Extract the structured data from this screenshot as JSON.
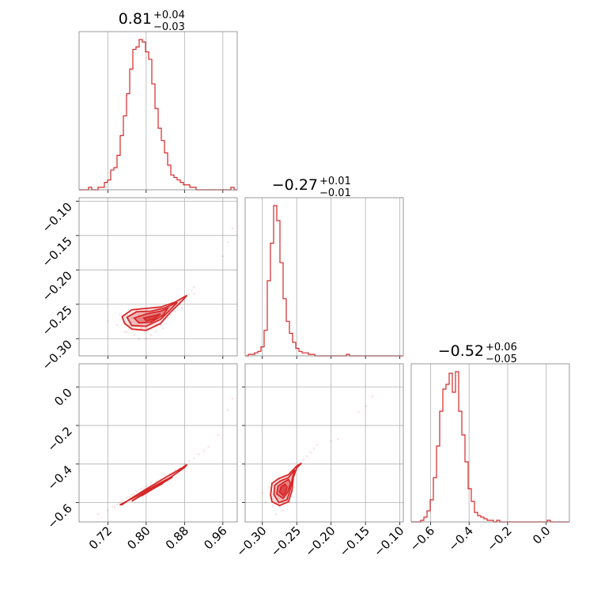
{
  "chart_data": {
    "type": "corner",
    "color": "#d62728",
    "grid": true,
    "parameters": [
      {
        "median": 0.81,
        "plus": 0.04,
        "minus": 0.03,
        "title": "0.81",
        "sup": "+0.04",
        "sub": "−0.03"
      },
      {
        "median": -0.27,
        "plus": 0.01,
        "minus": 0.01,
        "title": "−0.27",
        "sup": "+0.01",
        "sub": "−0.01"
      },
      {
        "median": -0.52,
        "plus": 0.06,
        "minus": 0.05,
        "title": "−0.52",
        "sup": "+0.06",
        "sub": "−0.05"
      }
    ],
    "axes": [
      {
        "range": [
          0.66,
          0.99
        ],
        "ticks": [
          0.72,
          0.8,
          0.88,
          0.96
        ],
        "tick_labels": [
          "0.72",
          "0.80",
          "0.88",
          "0.96"
        ]
      },
      {
        "range": [
          -0.325,
          -0.095
        ],
        "ticks": [
          -0.3,
          -0.25,
          -0.2,
          -0.15,
          -0.1
        ],
        "tick_labels": [
          "−0.30",
          "−0.25",
          "−0.20",
          "−0.15",
          "−0.10"
        ]
      },
      {
        "range": [
          -0.7,
          0.12
        ],
        "ticks": [
          -0.6,
          -0.4,
          -0.2,
          0.0
        ],
        "tick_labels": [
          "−0.6",
          "−0.4",
          "−0.2",
          "0.0"
        ]
      }
    ],
    "histograms": [
      {
        "edges_start": 0.66,
        "bin_width": 0.0066,
        "counts": [
          0,
          0,
          0,
          1,
          0,
          0,
          1,
          1,
          3,
          4,
          8,
          9,
          14,
          22,
          30,
          39,
          49,
          57,
          58,
          61,
          60,
          56,
          53,
          43,
          33,
          25,
          20,
          15,
          10,
          6,
          5,
          4,
          3,
          2,
          2,
          1,
          1,
          0,
          0,
          0,
          0,
          0,
          0,
          0,
          0,
          0,
          0,
          0,
          1,
          0
        ]
      },
      {
        "edges_start": -0.325,
        "bin_width": 0.0046,
        "counts": [
          0,
          1,
          1,
          2,
          3,
          6,
          17,
          50,
          75,
          100,
          90,
          62,
          38,
          23,
          15,
          9,
          5,
          3,
          2,
          2,
          1,
          1,
          0,
          0,
          0,
          0,
          0,
          0,
          0,
          0,
          0,
          0,
          1,
          0,
          0,
          0,
          0,
          0,
          0,
          0,
          0,
          0,
          0,
          0,
          0,
          0,
          0,
          0,
          0,
          0
        ]
      },
      {
        "edges_start": -0.7,
        "bin_width": 0.0164,
        "counts": [
          0,
          0,
          0,
          1,
          3,
          7,
          14,
          28,
          48,
          70,
          84,
          87,
          94,
          82,
          95,
          70,
          55,
          38,
          21,
          13,
          6,
          4,
          3,
          2,
          1,
          1,
          0,
          1,
          0,
          0,
          0,
          0,
          0,
          0,
          0,
          0,
          0,
          0,
          0,
          0,
          0,
          0,
          0,
          1,
          0,
          0,
          0,
          0,
          0,
          0
        ]
      }
    ],
    "pairs": [
      {
        "x_param": 0,
        "y_param": 1,
        "scatter_x": [
          0.72,
          0.74,
          0.745,
          0.755,
          0.77,
          0.775,
          0.78,
          0.79,
          0.79,
          0.8,
          0.805,
          0.81,
          0.815,
          0.82,
          0.825,
          0.83,
          0.835,
          0.84,
          0.85,
          0.855,
          0.86,
          0.87,
          0.875,
          0.88,
          0.89,
          0.895,
          0.9,
          0.75,
          0.765,
          0.785,
          0.795,
          0.8,
          0.81,
          0.82,
          0.83,
          0.845,
          0.86,
          0.87,
          0.76,
          0.78,
          0.8,
          0.82,
          0.84,
          0.86,
          0.88,
          0.9,
          0.96,
          0.97,
          0.98,
          0.785,
          0.81,
          0.835
        ],
        "scatter_y": [
          -0.275,
          -0.28,
          -0.265,
          -0.29,
          -0.27,
          -0.295,
          -0.26,
          -0.285,
          -0.255,
          -0.3,
          -0.265,
          -0.275,
          -0.26,
          -0.29,
          -0.265,
          -0.28,
          -0.27,
          -0.255,
          -0.265,
          -0.25,
          -0.26,
          -0.245,
          -0.255,
          -0.24,
          -0.235,
          -0.23,
          -0.225,
          -0.27,
          -0.28,
          -0.265,
          -0.27,
          -0.285,
          -0.275,
          -0.27,
          -0.26,
          -0.27,
          -0.255,
          -0.25,
          -0.29,
          -0.275,
          -0.26,
          -0.28,
          -0.265,
          -0.25,
          -0.245,
          -0.235,
          -0.18,
          -0.16,
          -0.14,
          -0.3,
          -0.295,
          -0.285
        ],
        "contours": [
          [
            [
              0.75,
              -0.268
            ],
            [
              0.77,
              -0.258
            ],
            [
              0.8,
              -0.256
            ],
            [
              0.83,
              -0.254
            ],
            [
              0.86,
              -0.247
            ],
            [
              0.885,
              -0.237
            ],
            [
              0.875,
              -0.245
            ],
            [
              0.85,
              -0.262
            ],
            [
              0.83,
              -0.278
            ],
            [
              0.8,
              -0.288
            ],
            [
              0.77,
              -0.286
            ],
            [
              0.755,
              -0.278
            ]
          ],
          [
            [
              0.76,
              -0.269
            ],
            [
              0.78,
              -0.261
            ],
            [
              0.81,
              -0.26
            ],
            [
              0.84,
              -0.255
            ],
            [
              0.865,
              -0.247
            ],
            [
              0.85,
              -0.258
            ],
            [
              0.83,
              -0.272
            ],
            [
              0.8,
              -0.282
            ],
            [
              0.77,
              -0.281
            ]
          ],
          [
            [
              0.775,
              -0.27
            ],
            [
              0.8,
              -0.264
            ],
            [
              0.83,
              -0.26
            ],
            [
              0.845,
              -0.256
            ],
            [
              0.835,
              -0.266
            ],
            [
              0.81,
              -0.276
            ],
            [
              0.785,
              -0.277
            ]
          ],
          [
            [
              0.795,
              -0.27
            ],
            [
              0.82,
              -0.266
            ],
            [
              0.83,
              -0.264
            ],
            [
              0.815,
              -0.272
            ],
            [
              0.8,
              -0.274
            ]
          ]
        ]
      },
      {
        "x_param": 0,
        "y_param": 2,
        "scatter_x": [
          0.72,
          0.73,
          0.74,
          0.745,
          0.75,
          0.76,
          0.77,
          0.775,
          0.78,
          0.79,
          0.8,
          0.81,
          0.82,
          0.83,
          0.84,
          0.85,
          0.86,
          0.87,
          0.88,
          0.89,
          0.9,
          0.91,
          0.92,
          0.93,
          0.95,
          0.97,
          0.98,
          0.7,
          0.735,
          0.765,
          0.795,
          0.825,
          0.855,
          0.885
        ],
        "scatter_y": [
          -0.64,
          -0.62,
          -0.61,
          -0.6,
          -0.59,
          -0.575,
          -0.56,
          -0.555,
          -0.54,
          -0.53,
          -0.515,
          -0.5,
          -0.49,
          -0.475,
          -0.46,
          -0.45,
          -0.43,
          -0.42,
          -0.4,
          -0.385,
          -0.37,
          -0.35,
          -0.33,
          -0.31,
          -0.25,
          -0.12,
          -0.06,
          -0.66,
          -0.625,
          -0.57,
          -0.525,
          -0.485,
          -0.445,
          -0.41
        ],
        "contours": [
          [
            [
              0.745,
              -0.612
            ],
            [
              0.78,
              -0.566
            ],
            [
              0.82,
              -0.51
            ],
            [
              0.85,
              -0.47
            ],
            [
              0.88,
              -0.418
            ],
            [
              0.885,
              -0.402
            ],
            [
              0.875,
              -0.42
            ],
            [
              0.84,
              -0.47
            ],
            [
              0.8,
              -0.53
            ],
            [
              0.765,
              -0.584
            ],
            [
              0.75,
              -0.61
            ]
          ],
          [
            [
              0.77,
              -0.592
            ],
            [
              0.8,
              -0.548
            ],
            [
              0.83,
              -0.505
            ],
            [
              0.855,
              -0.468
            ],
            [
              0.85,
              -0.472
            ],
            [
              0.82,
              -0.516
            ],
            [
              0.79,
              -0.56
            ],
            [
              0.772,
              -0.588
            ]
          ],
          [
            [
              0.79,
              -0.565
            ],
            [
              0.815,
              -0.528
            ],
            [
              0.835,
              -0.5
            ],
            [
              0.828,
              -0.506
            ],
            [
              0.805,
              -0.538
            ],
            [
              0.792,
              -0.56
            ]
          ],
          [
            [
              0.8,
              -0.545
            ],
            [
              0.822,
              -0.515
            ],
            [
              0.815,
              -0.522
            ],
            [
              0.803,
              -0.54
            ]
          ]
        ]
      },
      {
        "x_param": 1,
        "y_param": 2,
        "scatter_x": [
          -0.3,
          -0.295,
          -0.29,
          -0.285,
          -0.28,
          -0.275,
          -0.27,
          -0.265,
          -0.26,
          -0.255,
          -0.25,
          -0.245,
          -0.24,
          -0.235,
          -0.23,
          -0.225,
          -0.22,
          -0.2,
          -0.19,
          -0.16,
          -0.15,
          -0.14,
          -0.28,
          -0.27,
          -0.26,
          -0.265,
          -0.275,
          -0.255,
          -0.285,
          -0.27
        ],
        "scatter_y": [
          -0.55,
          -0.6,
          -0.52,
          -0.58,
          -0.5,
          -0.62,
          -0.48,
          -0.56,
          -0.44,
          -0.52,
          -0.42,
          -0.4,
          -0.38,
          -0.36,
          -0.34,
          -0.32,
          -0.3,
          -0.28,
          -0.27,
          -0.13,
          -0.1,
          -0.05,
          -0.66,
          -0.64,
          -0.6,
          -0.46,
          -0.54,
          -0.48,
          -0.62,
          -0.58
        ],
        "contours": [
          [
            [
              -0.288,
              -0.56
            ],
            [
              -0.286,
              -0.5
            ],
            [
              -0.276,
              -0.475
            ],
            [
              -0.262,
              -0.455
            ],
            [
              -0.25,
              -0.41
            ],
            [
              -0.243,
              -0.395
            ],
            [
              -0.25,
              -0.42
            ],
            [
              -0.255,
              -0.47
            ],
            [
              -0.257,
              -0.54
            ],
            [
              -0.262,
              -0.595
            ],
            [
              -0.275,
              -0.615
            ],
            [
              -0.286,
              -0.595
            ]
          ],
          [
            [
              -0.283,
              -0.56
            ],
            [
              -0.282,
              -0.51
            ],
            [
              -0.274,
              -0.488
            ],
            [
              -0.262,
              -0.47
            ],
            [
              -0.253,
              -0.43
            ],
            [
              -0.256,
              -0.47
            ],
            [
              -0.26,
              -0.54
            ],
            [
              -0.264,
              -0.585
            ],
            [
              -0.276,
              -0.6
            ]
          ],
          [
            [
              -0.279,
              -0.555
            ],
            [
              -0.277,
              -0.515
            ],
            [
              -0.27,
              -0.497
            ],
            [
              -0.262,
              -0.48
            ],
            [
              -0.259,
              -0.5
            ],
            [
              -0.263,
              -0.545
            ],
            [
              -0.27,
              -0.578
            ]
          ],
          [
            [
              -0.275,
              -0.545
            ],
            [
              -0.273,
              -0.52
            ],
            [
              -0.267,
              -0.505
            ],
            [
              -0.264,
              -0.52
            ],
            [
              -0.266,
              -0.545
            ],
            [
              -0.27,
              -0.562
            ]
          ]
        ]
      }
    ]
  }
}
